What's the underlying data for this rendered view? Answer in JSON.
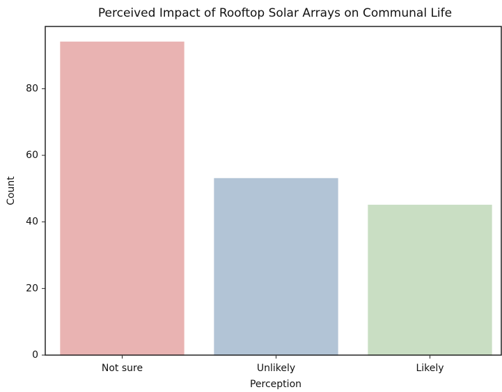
{
  "chart_data": {
    "type": "bar",
    "title": "Perceived Impact of Rooftop Solar Arrays on Communal Life",
    "xlabel": "Perception",
    "ylabel": "Count",
    "categories": [
      "Not sure",
      "Unlikely",
      "Likely"
    ],
    "values": [
      94,
      53,
      45
    ],
    "colors": [
      "#f0b9b7",
      "#b8cadd",
      "#cfe5c9"
    ],
    "ylim": [
      0,
      98.7
    ],
    "yticks": [
      0,
      20,
      40,
      60,
      80
    ],
    "grid": false
  }
}
